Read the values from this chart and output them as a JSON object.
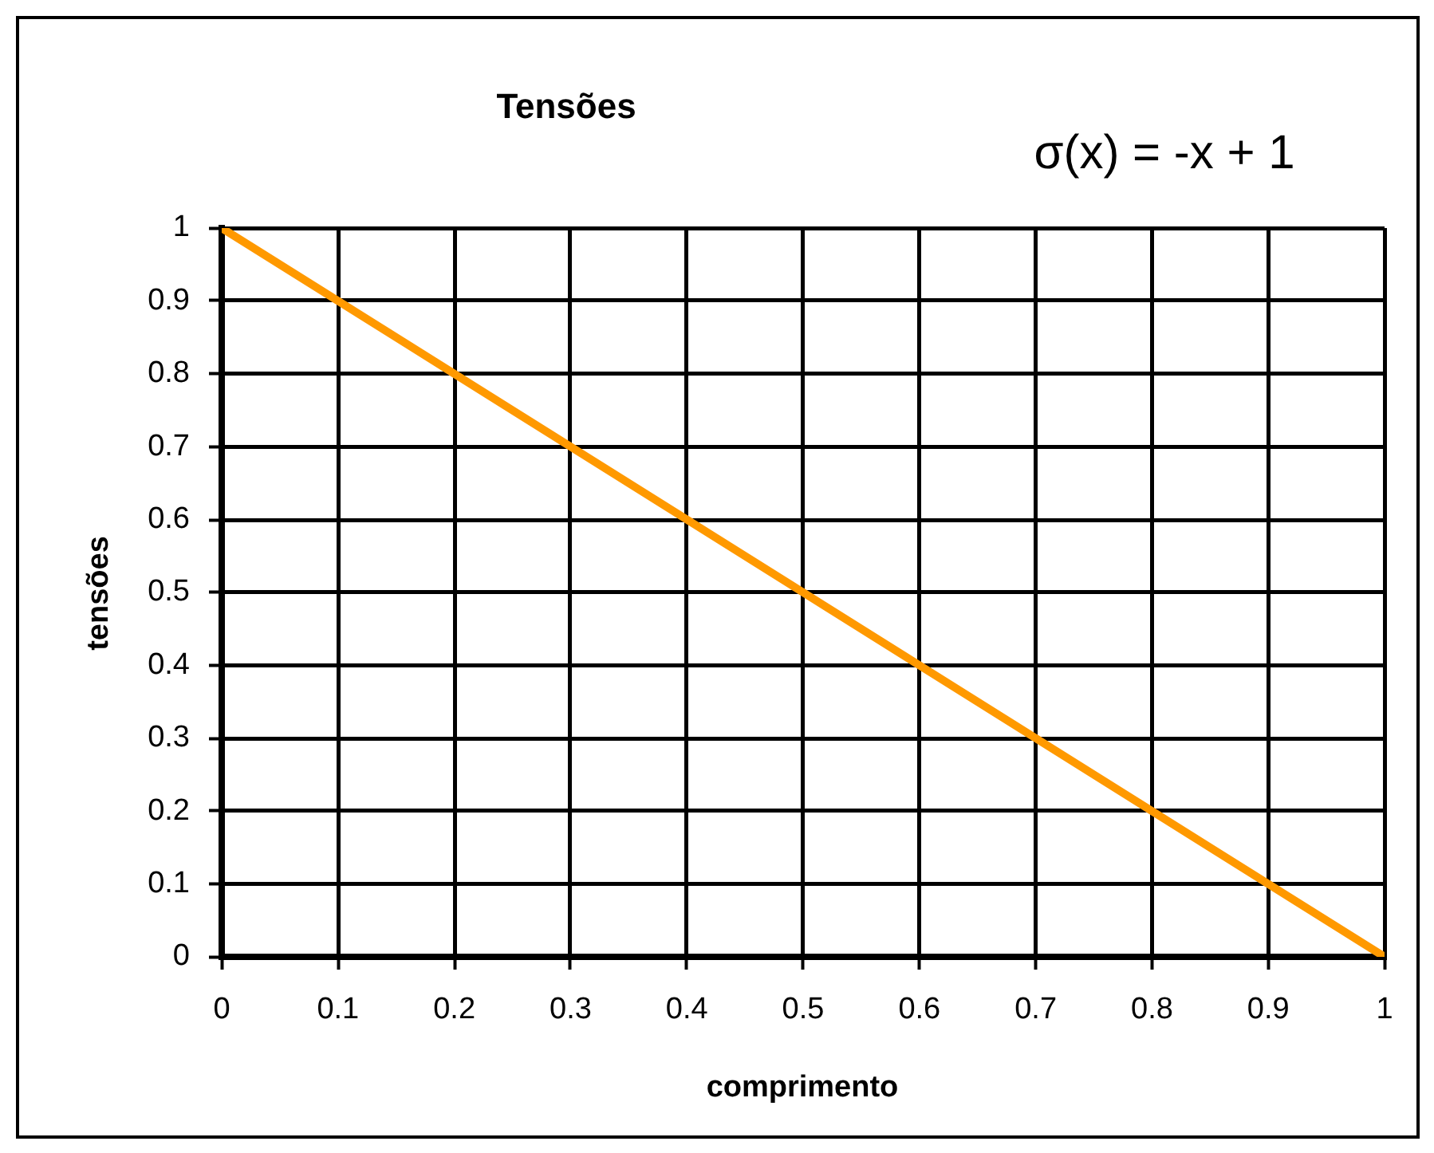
{
  "chart_data": {
    "type": "line",
    "title": "Tensões",
    "xlabel": "comprimento",
    "ylabel": "tensões",
    "annotations": [
      "σ(x) = -x + 1"
    ],
    "x": [
      0,
      1
    ],
    "series": [
      {
        "color": "#ff9900",
        "values": [
          1,
          0
        ]
      }
    ],
    "xlim": [
      0,
      1
    ],
    "ylim": [
      0,
      1
    ],
    "xticks": [
      0,
      0.1,
      0.2,
      0.3,
      0.4,
      0.5,
      0.6,
      0.7,
      0.8,
      0.9,
      1
    ],
    "yticks": [
      0,
      0.1,
      0.2,
      0.3,
      0.4,
      0.5,
      0.6,
      0.7,
      0.8,
      0.9,
      1
    ],
    "grid": true,
    "marker": "none"
  }
}
